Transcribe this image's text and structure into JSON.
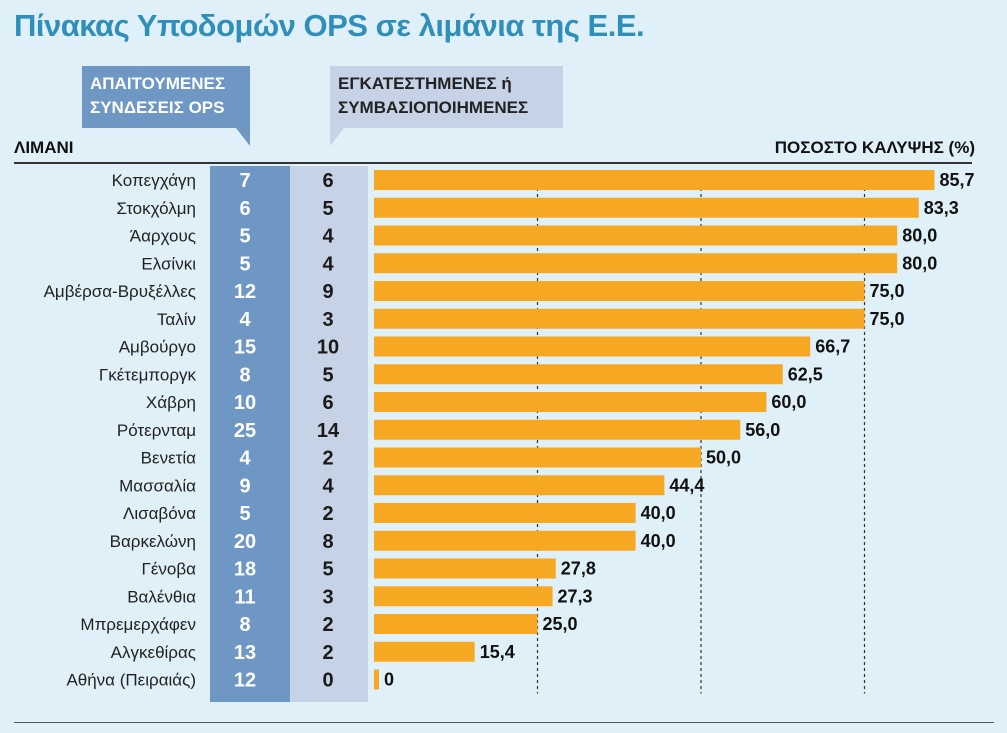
{
  "title": "Πίνακας Υποδομών OPS σε λιμάνια της Ε.Ε.",
  "headers": {
    "required": [
      "ΑΠΑΙΤΟΥΜΕΝΕΣ",
      "ΣΥΝΔΕΣΕΙΣ OPS"
    ],
    "installed": [
      "ΕΓΚΑΤΕΣΤΗΜΕΝΕΣ ή",
      "ΣΥΜΒΑΣΙΟΠΟΙΗΜΕΝΕΣ"
    ],
    "ports": "ΛΙΜΑΝΙ",
    "coverage": "ΠΟΣΟΣΤΟ ΚΑΛΥΨΗΣ (%)"
  },
  "colors": {
    "bar": "#f7a823",
    "required_col": "#6e97c4",
    "installed_col": "#c6d3e6",
    "background": "#dff0f9",
    "title": "#2f8fb8"
  },
  "chart_data": {
    "type": "bar",
    "orientation": "horizontal",
    "title": "Πίνακας Υποδομών OPS σε λιμάνια της Ε.Ε.",
    "categories": [
      "Κοπεγχάγη",
      "Στοκχόλμη",
      "Άαρχους",
      "Ελσίνκι",
      "Αμβέρσα-Βρυξέλλες",
      "Ταλίν",
      "Αμβούργο",
      "Γκέτεμποργκ",
      "Χάβρη",
      "Ρότερνταμ",
      "Βενετία",
      "Μασσαλία",
      "Λισαβόνα",
      "Βαρκελώνη",
      "Γένοβα",
      "Βαλένθια",
      "Μπρεμερχάφεν",
      "Αλγκεθίρας",
      "Αθήνα (Πειραιάς)"
    ],
    "required": [
      7,
      6,
      5,
      5,
      12,
      4,
      15,
      8,
      10,
      25,
      4,
      9,
      5,
      20,
      18,
      11,
      8,
      13,
      12
    ],
    "installed": [
      6,
      5,
      4,
      4,
      9,
      3,
      10,
      5,
      6,
      14,
      2,
      4,
      2,
      8,
      5,
      3,
      2,
      2,
      0
    ],
    "values": [
      85.7,
      83.3,
      80.0,
      80.0,
      75.0,
      75.0,
      66.7,
      62.5,
      60.0,
      56.0,
      50.0,
      44.4,
      40.0,
      40.0,
      27.8,
      27.3,
      25.0,
      15.4,
      0
    ],
    "value_labels": [
      "85,7",
      "83,3",
      "80,0",
      "80,0",
      "75,0",
      "75,0",
      "66,7",
      "62,5",
      "60,0",
      "56,0",
      "50,0",
      "44,4",
      "40,0",
      "40,0",
      "27,8",
      "27,3",
      "25,0",
      "15,4",
      "0"
    ],
    "xlim": [
      0,
      100
    ],
    "reference_lines": [
      25,
      50,
      75
    ],
    "xlabel": "ΠΟΣΟΣΤΟ ΚΑΛΥΨΗΣ (%)",
    "ylabel": "ΛΙΜΑΝΙ"
  }
}
